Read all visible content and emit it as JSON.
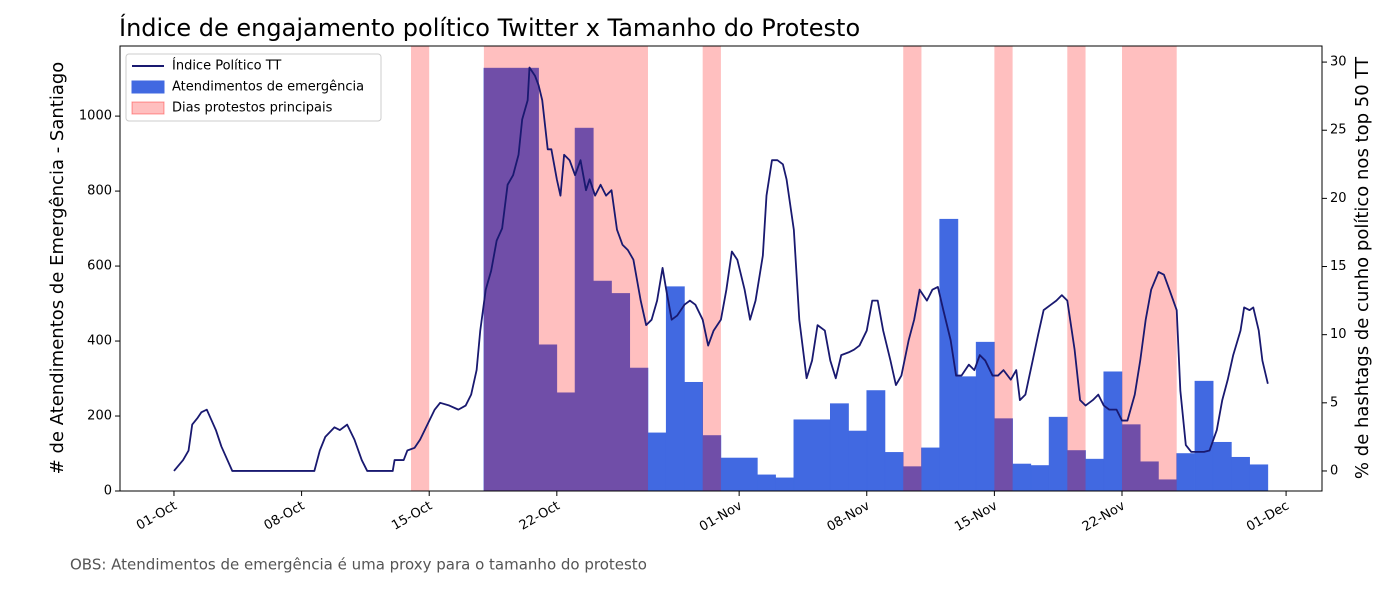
{
  "chart_data": {
    "type": "line",
    "title": "Índice de engajamento político Twitter x Tamanho do Protesto",
    "y_label": "# de Atendimentos de Emergência - Santiago",
    "y2_label": "% de hashtags de cunho político nos top 50 TT",
    "note": "OBS: Atendimentos de emergência é uma proxy para o tamanho do protesto",
    "legend": "upper left",
    "xlim": [
      -2.96,
      62.97
    ],
    "xticks": [
      {
        "value": 0,
        "label": "01-Oct"
      },
      {
        "value": 7,
        "label": "08-Oct"
      },
      {
        "value": 14,
        "label": "15-Oct"
      },
      {
        "value": 21,
        "label": "22-Oct"
      },
      {
        "value": 31,
        "label": "01-Nov"
      },
      {
        "value": 38,
        "label": "08-Nov"
      },
      {
        "value": 45,
        "label": "15-Nov"
      },
      {
        "value": 52,
        "label": "22-Nov"
      },
      {
        "value": 61,
        "label": "01-Dec"
      }
    ],
    "ylim": [
      0,
      1187
    ],
    "yticks": [
      0,
      200,
      400,
      600,
      800,
      1000
    ],
    "y2lim": [
      -1.47,
      31.18
    ],
    "y2ticks": [
      0,
      5,
      10,
      15,
      20,
      25,
      30
    ],
    "series": [
      {
        "name": "Índice Político TT",
        "type": "line",
        "axis": "y2",
        "color": "#191970",
        "x": [
          0,
          0.5,
          0.8,
          1.0,
          1.3,
          1.5,
          1.8,
          2.0,
          2.3,
          2.6,
          3.2,
          7.7,
          8.0,
          8.3,
          8.8,
          9.1,
          9.5,
          9.9,
          10.3,
          10.6,
          12.0,
          12.1,
          12.6,
          12.8,
          13.2,
          13.5,
          13.9,
          14.3,
          14.6,
          15.1,
          15.6,
          16.0,
          16.3,
          16.6,
          16.8,
          17.1,
          17.4,
          17.7,
          18.0,
          18.3,
          18.6,
          18.9,
          19.1,
          19.4,
          19.5,
          19.8,
          20.0,
          20.2,
          20.5,
          20.7,
          21.0,
          21.2,
          21.4,
          21.7,
          22.0,
          22.3,
          22.6,
          22.8,
          23.1,
          23.4,
          23.7,
          24.0,
          24.3,
          24.6,
          24.9,
          25.2,
          25.6,
          25.9,
          26.2,
          26.5,
          26.8,
          27.0,
          27.3,
          27.6,
          28.0,
          28.3,
          28.6,
          29.0,
          29.3,
          29.6,
          30.0,
          30.3,
          30.6,
          30.9,
          31.3,
          31.6,
          31.9,
          32.3,
          32.5,
          32.8,
          33.1,
          33.4,
          33.6,
          34.0,
          34.3,
          34.7,
          35.0,
          35.3,
          35.7,
          36.0,
          36.3,
          36.6,
          37.0,
          37.3,
          37.6,
          38.0,
          38.3,
          38.6,
          38.9,
          39.3,
          39.6,
          39.9,
          40.3,
          40.6,
          40.9,
          41.3,
          41.6,
          41.9,
          42.2,
          42.6,
          42.9,
          43.2,
          43.6,
          43.9,
          44.2,
          44.5,
          44.9,
          45.2,
          45.5,
          45.9,
          46.2,
          46.4,
          46.7,
          47.1,
          47.4,
          47.7,
          48.1,
          48.4,
          48.7,
          49.0,
          49.4,
          49.7,
          50.0,
          50.4,
          50.7,
          51.0,
          51.3,
          51.7,
          52.0,
          52.3,
          52.7,
          53.0,
          53.3,
          53.6,
          54.0,
          54.3,
          54.6,
          55.0,
          55.2,
          55.5,
          55.8,
          56.2,
          56.5,
          56.8,
          57.2,
          57.5,
          57.8,
          58.1,
          58.5,
          58.7,
          59.0,
          59.2,
          59.5,
          59.7,
          60.0
        ],
        "values": [
          0,
          0.8,
          1.5,
          3.4,
          3.9,
          4.3,
          4.5,
          3.9,
          3.0,
          1.8,
          0,
          0,
          1.5,
          2.5,
          3.2,
          3.0,
          3.4,
          2.3,
          0.8,
          0,
          0,
          0.8,
          0.8,
          1.5,
          1.7,
          2.3,
          3.4,
          4.5,
          5.0,
          4.8,
          4.5,
          4.8,
          5.6,
          7.4,
          10.3,
          13.3,
          14.7,
          16.9,
          17.8,
          21.0,
          21.7,
          23.2,
          25.8,
          27.2,
          29.6,
          29.0,
          28.3,
          27.2,
          23.6,
          23.6,
          21.4,
          20.2,
          23.2,
          22.8,
          21.7,
          22.8,
          20.6,
          21.4,
          20.2,
          21.0,
          20.2,
          20.6,
          17.7,
          16.6,
          16.2,
          15.5,
          12.5,
          10.7,
          11.1,
          12.5,
          14.9,
          13.3,
          11.1,
          11.4,
          12.2,
          12.5,
          12.2,
          11.1,
          9.2,
          10.3,
          11.1,
          13.3,
          16.1,
          15.5,
          13.3,
          11.1,
          12.5,
          15.8,
          20.2,
          22.8,
          22.8,
          22.5,
          21.4,
          17.7,
          11.1,
          6.8,
          8.1,
          10.7,
          10.3,
          8.1,
          6.8,
          8.5,
          8.7,
          8.9,
          9.2,
          10.3,
          12.5,
          12.5,
          10.3,
          8.1,
          6.3,
          7.0,
          9.6,
          11.1,
          13.3,
          12.5,
          13.3,
          13.5,
          11.8,
          9.6,
          7.0,
          7.0,
          7.8,
          7.4,
          8.5,
          8.1,
          7.0,
          7.0,
          7.4,
          6.7,
          7.4,
          5.2,
          5.6,
          8.1,
          10.0,
          11.8,
          12.2,
          12.5,
          12.9,
          12.5,
          8.9,
          5.2,
          4.8,
          5.2,
          5.6,
          4.8,
          4.5,
          4.5,
          3.7,
          3.7,
          5.6,
          8.1,
          11.1,
          13.3,
          14.6,
          14.4,
          13.3,
          11.8,
          5.9,
          1.9,
          1.4,
          1.4,
          1.4,
          1.5,
          3.0,
          5.2,
          6.7,
          8.5,
          10.3,
          12.0,
          11.8,
          12.0,
          10.3,
          8.1,
          6.4
        ]
      },
      {
        "name": "Atendimentos de emergência",
        "type": "step-area",
        "color": "#4169e1",
        "x": [
          0,
          17,
          20,
          21,
          22,
          23,
          24,
          25,
          26,
          27,
          28,
          29,
          30,
          32,
          33,
          34,
          36,
          37,
          38,
          39,
          40,
          41,
          42,
          43,
          44,
          45,
          46,
          47,
          48,
          49,
          50,
          51,
          52,
          53,
          54,
          55,
          56,
          57,
          58,
          59,
          60
        ],
        "values": [
          0,
          1128,
          390,
          262,
          968,
          560,
          527,
          328,
          155,
          545,
          290,
          148,
          88,
          43,
          35,
          190,
          233,
          160,
          268,
          103,
          65,
          115,
          725,
          305,
          397,
          193,
          72,
          68,
          197,
          108,
          85,
          318,
          177,
          78,
          30,
          100,
          293,
          130,
          90,
          70,
          0
        ]
      }
    ],
    "spans": {
      "name": "Dias protestos principais",
      "color": "#ff0000",
      "opacity": 0.25,
      "ranges": [
        [
          13,
          14
        ],
        [
          17,
          26
        ],
        [
          29,
          30
        ],
        [
          40,
          41
        ],
        [
          45,
          46
        ],
        [
          49,
          50
        ],
        [
          52,
          55
        ]
      ]
    }
  }
}
